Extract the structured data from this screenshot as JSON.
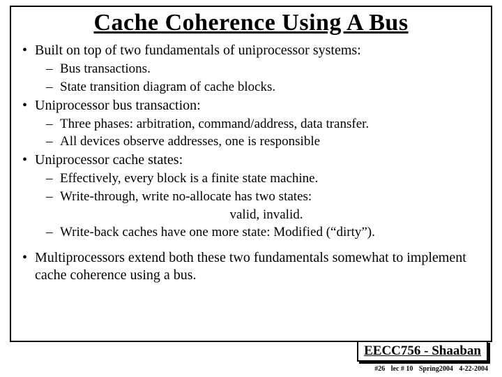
{
  "title": "Cache Coherence Using A Bus",
  "bullets": {
    "b1": "Built on top of two fundamentals of uniprocessor systems:",
    "b1a": "Bus transactions.",
    "b1b": "State transition diagram of cache blocks.",
    "b2": "Uniprocessor bus transaction:",
    "b2a": "Three phases: arbitration, command/address, data transfer.",
    "b2b": "All devices observe addresses, one is responsible",
    "b3": "Uniprocessor cache states:",
    "b3a": "Effectively, every block is a finite state machine.",
    "b3b": "Write-through, write no-allocate has two states:",
    "b3c": "valid,   invalid.",
    "b3d": "Write-back caches have one more state:  Modified (“dirty”).",
    "b4": "Multiprocessors extend both these two fundamentals somewhat to implement cache coherence using a bus."
  },
  "footer": {
    "course": "EECC756 - Shaaban",
    "slide_no": "#26",
    "lecture": "lec # 10",
    "term": "Spring2004",
    "date": "4-22-2004"
  },
  "colors": {
    "text": "#000000",
    "background": "#ffffff",
    "border": "#000000"
  },
  "typography": {
    "title_fontsize": 34,
    "body_fontsize": 20,
    "sub_fontsize": 19,
    "footer_fontsize": 19,
    "meta_fontsize": 10,
    "font_family": "Times New Roman"
  }
}
